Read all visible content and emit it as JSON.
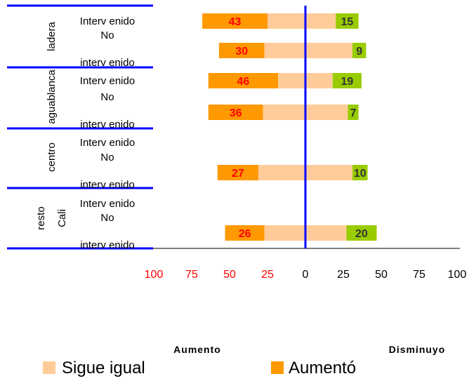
{
  "chart_data": {
    "type": "bar",
    "subtype": "diverging-stacked-horizontal",
    "x_ticks": [
      "100",
      "75",
      "50",
      "25",
      "0",
      "25",
      "50",
      "75",
      "100"
    ],
    "x_range": [
      -100,
      100
    ],
    "groups": [
      {
        "label": "ladera",
        "rows": [
          {
            "label": [
              "Interv enido"
            ],
            "aumento": 43,
            "sigue_left": 25,
            "sigue_right": 20,
            "disminuyo": 15
          },
          {
            "label": [
              "No",
              "interv enido"
            ],
            "aumento": 30,
            "sigue_left": 27,
            "sigue_right": 31,
            "disminuyo": 9
          }
        ]
      },
      {
        "label": "aguablanca",
        "rows": [
          {
            "label": [
              "Interv enido"
            ],
            "aumento": 46,
            "sigue_left": 18,
            "sigue_right": 18,
            "disminuyo": 19
          },
          {
            "label": [
              "No",
              "interv enido"
            ],
            "aumento": 36,
            "sigue_left": 28,
            "sigue_right": 28,
            "disminuyo": 7
          }
        ]
      },
      {
        "label": "centro",
        "rows": [
          {
            "label": [
              "Interv enido"
            ],
            "aumento": null,
            "sigue_left": null,
            "sigue_right": null,
            "disminuyo": null
          },
          {
            "label": [
              "No",
              "interv enido"
            ],
            "aumento": 27,
            "sigue_left": 31,
            "sigue_right": 31,
            "disminuyo": 10
          }
        ]
      },
      {
        "label": "resto Cali",
        "label_lines": [
          "resto",
          "Cali"
        ],
        "rows": [
          {
            "label": [
              "Interv enido"
            ],
            "aumento": null,
            "sigue_left": null,
            "sigue_right": null,
            "disminuyo": null
          },
          {
            "label": [
              "No",
              "interv enido"
            ],
            "aumento": 26,
            "sigue_left": 27,
            "sigue_right": 27,
            "disminuyo": 20
          }
        ]
      }
    ],
    "side_labels": {
      "left": "Aumento",
      "right": "Disminuyo"
    },
    "legend": [
      {
        "name": "Sigue igual",
        "color": "#ffcc99"
      },
      {
        "name": "Aumentó",
        "color": "#ff9900"
      }
    ],
    "colors": {
      "aumento": "#ff9900",
      "sigue": "#ffcc99",
      "disminuyo": "#99cc00",
      "axis": "#0000ff",
      "aumento_label": "#ff0000",
      "disminuyo_label": "#333333",
      "left_ticks": "#ff0000",
      "right_ticks": "#000000"
    }
  }
}
